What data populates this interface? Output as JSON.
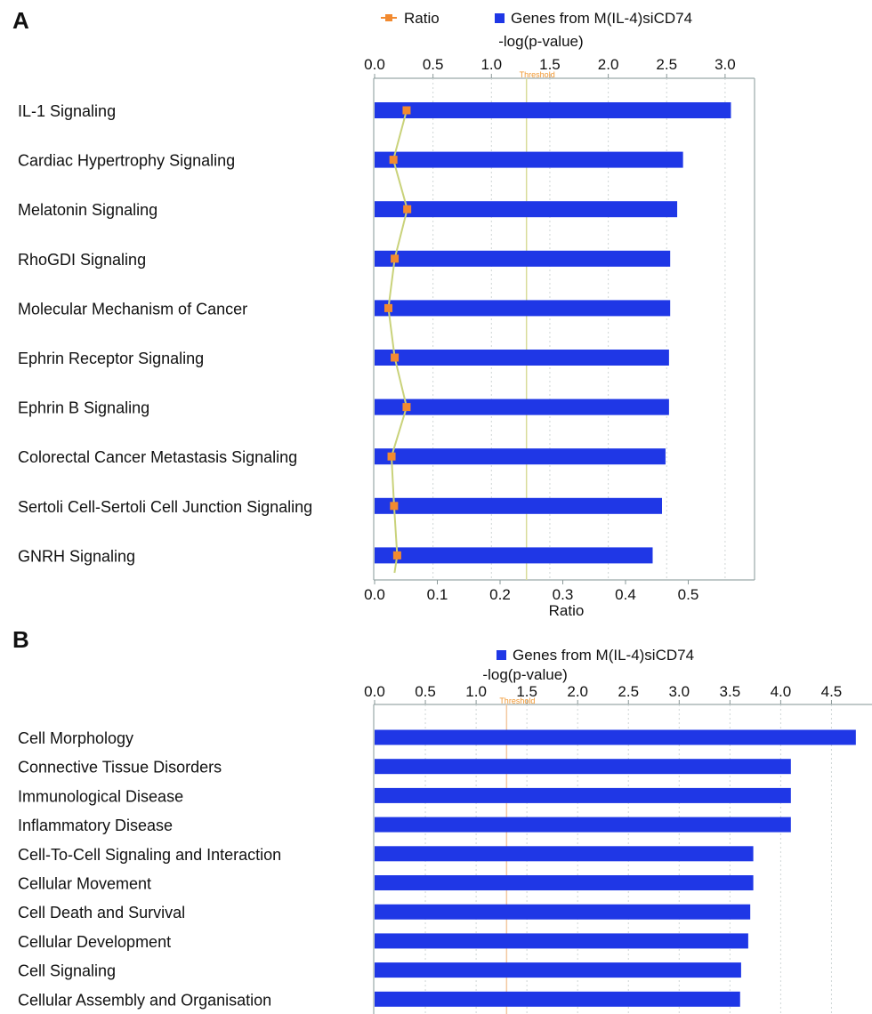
{
  "chart_data": [
    {
      "panel": "A",
      "type": "bar",
      "orientation": "horizontal",
      "legend": [
        {
          "name": "Ratio",
          "marker": "line-square",
          "color": "#f28a30"
        },
        {
          "name": "Genes from M(IL-4)siCD74",
          "marker": "square",
          "color": "#1f37e6"
        }
      ],
      "legend_position": "top",
      "top_axis": {
        "label": "-log(p-value)",
        "range": [
          0,
          3.2
        ],
        "ticks": [
          0.0,
          0.5,
          1.0,
          1.5,
          2.0,
          2.5,
          3.0
        ],
        "tick_labels": [
          "0.0",
          "0.5",
          "1.0",
          "1.5",
          "2.0",
          "2.5",
          "3.0"
        ]
      },
      "bottom_axis": {
        "label": "Ratio",
        "range": [
          0,
          0.57
        ],
        "ticks": [
          0.0,
          0.1,
          0.2,
          0.3,
          0.4,
          0.5
        ],
        "tick_labels": [
          "0.0",
          "0.1",
          "0.2",
          "0.3",
          "0.4",
          "0.5"
        ]
      },
      "threshold": {
        "label": "Threshold",
        "value": 1.3
      },
      "categories": [
        "IL-1 Signaling",
        "Cardiac Hypertrophy Signaling",
        "Melatonin Signaling",
        "RhoGDI Signaling",
        "Molecular Mechanism of Cancer",
        "Ephrin Receptor Signaling",
        "Ephrin B Signaling",
        "Colorectal Cancer Metastasis Signaling",
        "Sertoli Cell-Sertoli Cell Junction Signaling",
        "GNRH Signaling"
      ],
      "series": [
        {
          "name": "Genes from M(IL-4)siCD74",
          "type": "bar",
          "values": [
            3.05,
            2.64,
            2.59,
            2.53,
            2.53,
            2.52,
            2.52,
            2.49,
            2.46,
            2.38
          ]
        },
        {
          "name": "Ratio",
          "type": "line",
          "values": [
            0.051,
            0.03,
            0.052,
            0.032,
            0.022,
            0.032,
            0.051,
            0.027,
            0.031,
            0.036
          ]
        }
      ]
    },
    {
      "panel": "B",
      "type": "bar",
      "orientation": "horizontal",
      "legend": [
        {
          "name": "Genes from M(IL-4)siCD74",
          "marker": "square",
          "color": "#1f37e6"
        }
      ],
      "legend_position": "top",
      "top_axis": {
        "label": "-log(p-value)",
        "range": [
          0,
          4.8
        ],
        "ticks": [
          0.0,
          0.5,
          1.0,
          1.5,
          2.0,
          2.5,
          3.0,
          3.5,
          4.0,
          4.5
        ],
        "tick_labels": [
          "0.0",
          "0.5",
          "1.0",
          "1.5",
          "2.0",
          "2.5",
          "3.0",
          "3.5",
          "4.0",
          "4.5"
        ]
      },
      "threshold": {
        "label": "Threshold",
        "value": 1.3
      },
      "categories": [
        "Cell Morphology",
        "Connective Tissue Disorders",
        "Immunological Disease",
        "Inflammatory Disease",
        "Cell-To-Cell Signaling and Interaction",
        "Cellular Movement",
        "Cell Death and Survival",
        "Cellular Development",
        "Cell Signaling",
        "Cellular Assembly and Organisation"
      ],
      "series": [
        {
          "name": "Genes from M(IL-4)siCD74",
          "type": "bar",
          "values": [
            4.74,
            4.1,
            4.1,
            4.1,
            3.73,
            3.73,
            3.7,
            3.68,
            3.61,
            3.6
          ]
        }
      ]
    }
  ]
}
